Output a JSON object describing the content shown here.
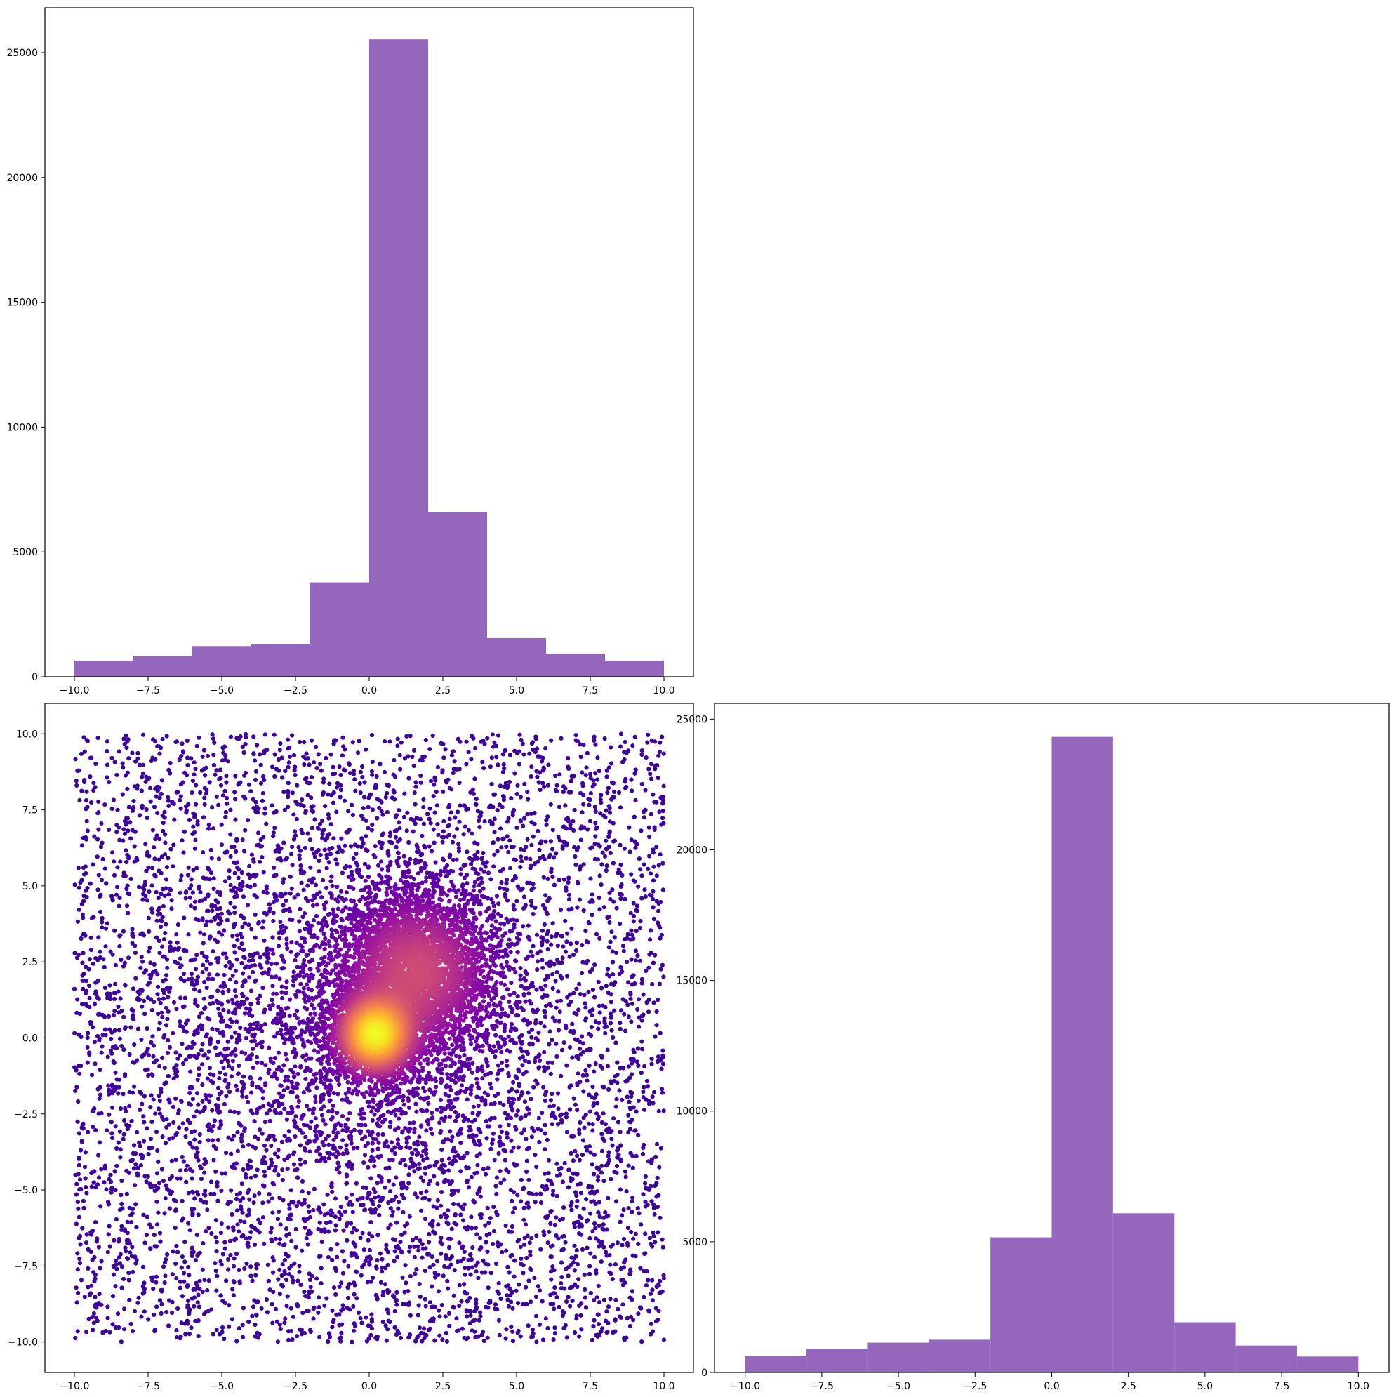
{
  "colors": {
    "bar_fill": "#9467bd",
    "axes_frame": "#000000",
    "scatter_colormap": "plasma"
  },
  "chart_data": [
    {
      "id": "hist-top",
      "type": "bar",
      "subtype": "histogram",
      "bin_edges": [
        -10,
        -8,
        -6,
        -4,
        -2,
        0,
        2,
        4,
        6,
        8,
        10
      ],
      "values": [
        650,
        830,
        1230,
        1320,
        3780,
        25530,
        6600,
        1550,
        930,
        650
      ],
      "xlim": [
        -11,
        11
      ],
      "ylim": [
        0,
        26800
      ],
      "xticks": [
        -10.0,
        -7.5,
        -5.0,
        -2.5,
        0.0,
        2.5,
        5.0,
        7.5,
        10.0
      ],
      "xtick_labels": [
        "−10.0",
        "−7.5",
        "−5.0",
        "−2.5",
        "0.0",
        "2.5",
        "5.0",
        "7.5",
        "10.0"
      ],
      "yticks": [
        0,
        5000,
        10000,
        15000,
        20000,
        25000
      ],
      "ytick_labels": [
        "0",
        "5000",
        "10000",
        "15000",
        "20000",
        "25000"
      ],
      "title": "",
      "xlabel": "",
      "ylabel": "",
      "grid": false
    },
    {
      "id": "scatter-density",
      "type": "scatter",
      "color_encoding": "point density (plasma colormap: dark purple = low, yellow = high)",
      "xlim": [
        -11,
        11
      ],
      "ylim": [
        -11,
        11
      ],
      "x_range": [
        -10,
        10
      ],
      "y_range": [
        -10,
        10
      ],
      "uniform_background_points": 5400,
      "clusters": [
        {
          "center": [
            0.2,
            0.1
          ],
          "spread": 0.7,
          "count": 2600
        },
        {
          "center": [
            1.6,
            2.2
          ],
          "spread": 1.4,
          "count": 3400
        },
        {
          "center": [
            0.0,
            0.0
          ],
          "spread": 3.2,
          "count": 1600
        }
      ],
      "xticks": [
        -10.0,
        -7.5,
        -5.0,
        -2.5,
        0.0,
        2.5,
        5.0,
        7.5,
        10.0
      ],
      "xtick_labels": [
        "−10.0",
        "−7.5",
        "−5.0",
        "−2.5",
        "0.0",
        "2.5",
        "5.0",
        "7.5",
        "10.0"
      ],
      "yticks": [
        -10.0,
        -7.5,
        -5.0,
        -2.5,
        0.0,
        2.5,
        5.0,
        7.5,
        10.0
      ],
      "ytick_labels": [
        "−10.0",
        "−7.5",
        "−5.0",
        "−2.5",
        "0.0",
        "2.5",
        "5.0",
        "7.5",
        "10.0"
      ],
      "title": "",
      "xlabel": "",
      "ylabel": "",
      "grid": false
    },
    {
      "id": "hist-right",
      "type": "bar",
      "subtype": "histogram",
      "bin_edges": [
        -10,
        -8,
        -6,
        -4,
        -2,
        0,
        2,
        4,
        6,
        8,
        10
      ],
      "values": [
        620,
        900,
        1140,
        1250,
        5170,
        24320,
        6090,
        1920,
        1030,
        610
      ],
      "xlim": [
        -11,
        11
      ],
      "ylim": [
        0,
        25600
      ],
      "xticks": [
        -10.0,
        -7.5,
        -5.0,
        -2.5,
        0.0,
        2.5,
        5.0,
        7.5,
        10.0
      ],
      "xtick_labels": [
        "−10.0",
        "−7.5",
        "−5.0",
        "−2.5",
        "0.0",
        "2.5",
        "5.0",
        "7.5",
        "10.0"
      ],
      "yticks": [
        0,
        5000,
        10000,
        15000,
        20000,
        25000
      ],
      "ytick_labels": [
        "0",
        "5000",
        "10000",
        "15000",
        "20000",
        "25000"
      ],
      "title": "",
      "xlabel": "",
      "ylabel": "",
      "grid": false
    }
  ]
}
